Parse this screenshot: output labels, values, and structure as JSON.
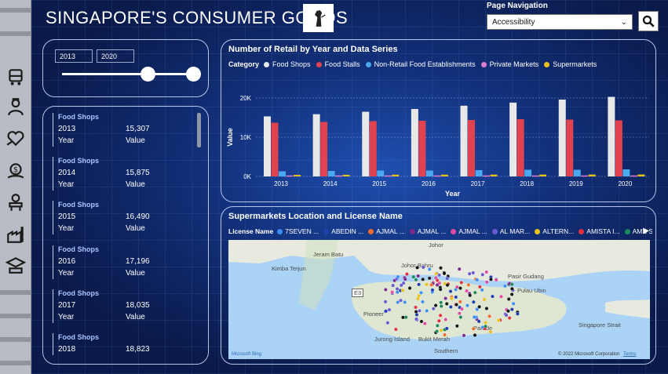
{
  "header": {
    "title": "SINGAPORE'S CONSUMER GOODS",
    "nav_label": "Page Navigation",
    "nav_selected": "Accessibility"
  },
  "rail": {
    "icons": [
      "transport-icon",
      "worker-icon",
      "health-icon",
      "finance-icon",
      "leisure-icon",
      "industry-icon",
      "education-icon"
    ]
  },
  "slicer": {
    "from": "2013",
    "to": "2020"
  },
  "cards": [
    {
      "category": "Food Shops",
      "year": "2013",
      "value": "15,307",
      "year_label": "Year",
      "value_label": "Value"
    },
    {
      "category": "Food Shops",
      "year": "2014",
      "value": "15,875",
      "year_label": "Year",
      "value_label": "Value"
    },
    {
      "category": "Food Shops",
      "year": "2015",
      "value": "16,490",
      "year_label": "Year",
      "value_label": "Value"
    },
    {
      "category": "Food Shops",
      "year": "2016",
      "value": "17,196",
      "year_label": "Year",
      "value_label": "Value"
    },
    {
      "category": "Food Shops",
      "year": "2017",
      "value": "18,035",
      "year_label": "Year",
      "value_label": "Value"
    },
    {
      "category": "Food Shops",
      "year": "2018",
      "value": "18,823",
      "year_label": "Year",
      "value_label": "Value"
    }
  ],
  "chart_panel": {
    "title": "Number of Retail by Year and Data Series",
    "legend_label": "Category"
  },
  "chart_data": {
    "type": "bar",
    "title": "Number of Retail by Year and Data Series",
    "xlabel": "Year",
    "ylabel": "Value",
    "ylim": [
      0,
      20000
    ],
    "yticks": [
      "0K",
      "10K",
      "20K"
    ],
    "categories": [
      "2013",
      "2014",
      "2015",
      "2016",
      "2017",
      "2018",
      "2019",
      "2020"
    ],
    "series": [
      {
        "name": "Food Shops",
        "color": "#e8e8e8",
        "values": [
          15307,
          15875,
          16490,
          17196,
          18035,
          18823,
          19600,
          20300
        ]
      },
      {
        "name": "Food Stalls",
        "color": "#e0434f",
        "values": [
          13700,
          13900,
          14100,
          14200,
          14400,
          14600,
          14500,
          14300
        ]
      },
      {
        "name": "Non-Retail Food Establishments",
        "color": "#4aa8f0",
        "values": [
          1300,
          1400,
          1500,
          1500,
          1600,
          1700,
          1700,
          1800
        ]
      },
      {
        "name": "Private Markets",
        "color": "#e07bd0",
        "values": [
          250,
          250,
          250,
          250,
          250,
          250,
          250,
          250
        ]
      },
      {
        "name": "Supermarkets",
        "color": "#e8c21c",
        "values": [
          400,
          420,
          440,
          450,
          460,
          470,
          480,
          490
        ]
      }
    ]
  },
  "map_panel": {
    "title": "Supermarkets Location and License Name",
    "legend_label": "License Name",
    "legend": [
      {
        "name": "7SEVEN ...",
        "color": "#3a8ff0"
      },
      {
        "name": "ABEDIN ...",
        "color": "#1e3fb0"
      },
      {
        "name": "AJMAL ...",
        "color": "#f06a2a"
      },
      {
        "name": "AJMAL ...",
        "color": "#7a2a8a"
      },
      {
        "name": "AJMAL ...",
        "color": "#e04aa0"
      },
      {
        "name": "AL MAR...",
        "color": "#6a5ad0"
      },
      {
        "name": "ALTERN...",
        "color": "#e8c21c"
      },
      {
        "name": "AMISTA I...",
        "color": "#e03040"
      },
      {
        "name": "AMS SU...",
        "color": "#1a8a5a"
      }
    ],
    "places": [
      "Jeram Batu",
      "Kimba Terjun",
      "Johor Bahru",
      "Johor",
      "Singapore Strait",
      "Bukit Merah",
      "Southern",
      "Pulau Ubin",
      "Parade",
      "Pioneer",
      "Jurong Island",
      "Pasir Gudang"
    ],
    "attribution": "Microsoft Bing",
    "copyright": "© 2022 Microsoft Corporation",
    "terms": "Terms",
    "road_marker": "E3"
  },
  "colors": {
    "accent": "#4aa8f0",
    "panel_border": "#d2e1ff",
    "background": "#0a1a4a"
  }
}
